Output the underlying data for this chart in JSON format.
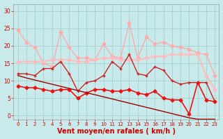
{
  "background_color": "#c8eaea",
  "grid_color": "#aad4d4",
  "xlabel": "Vent moyen/en rafales ( km/h )",
  "xlabel_color": "#cc0000",
  "xlabel_fontsize": 7,
  "yticks": [
    0,
    5,
    10,
    15,
    20,
    25,
    30
  ],
  "xticks": [
    0,
    1,
    2,
    3,
    4,
    5,
    6,
    7,
    8,
    9,
    10,
    11,
    12,
    13,
    14,
    15,
    16,
    17,
    18,
    19,
    20,
    21,
    22,
    23
  ],
  "xlim": [
    -0.5,
    23.5
  ],
  "ylim": [
    -1,
    32
  ],
  "series": [
    {
      "x": [
        0,
        1,
        2,
        3,
        4,
        5,
        6,
        7,
        8,
        9,
        10,
        11,
        12,
        13,
        14,
        15,
        16,
        17,
        18,
        19,
        20,
        21,
        22,
        23
      ],
      "y": [
        24.5,
        21.0,
        19.5,
        15.0,
        14.0,
        24.0,
        19.5,
        16.5,
        16.5,
        16.0,
        20.5,
        17.0,
        16.5,
        26.5,
        16.5,
        22.5,
        20.5,
        21.0,
        20.0,
        19.5,
        19.0,
        18.0,
        17.5,
        11.5
      ],
      "color": "#ffaaaa",
      "linewidth": 1.0,
      "markersize": 2.5,
      "marker": "D"
    },
    {
      "x": [
        0,
        1,
        2,
        3,
        4,
        5,
        6,
        7,
        8,
        9,
        10,
        11,
        12,
        13,
        14,
        15,
        16,
        17,
        18,
        19,
        20,
        21,
        22,
        23
      ],
      "y": [
        15.5,
        15.5,
        15.5,
        15.5,
        16.0,
        16.0,
        16.0,
        15.5,
        15.5,
        16.0,
        16.5,
        16.5,
        16.0,
        16.0,
        16.0,
        16.5,
        17.0,
        17.0,
        17.5,
        17.5,
        17.5,
        17.5,
        11.5,
        7.5
      ],
      "color": "#ffbbbb",
      "linewidth": 1.5,
      "markersize": 2.5,
      "marker": "D"
    },
    {
      "x": [
        0,
        1,
        2,
        3,
        4,
        5,
        6,
        7,
        8,
        9,
        10,
        11,
        12,
        13,
        14,
        15,
        16,
        17,
        18,
        19,
        20,
        21,
        22,
        23
      ],
      "y": [
        12.0,
        12.0,
        11.5,
        13.5,
        13.5,
        15.5,
        12.0,
        7.0,
        9.5,
        10.0,
        11.5,
        15.5,
        13.5,
        17.5,
        12.0,
        11.5,
        14.0,
        13.0,
        10.0,
        9.0,
        9.5,
        9.5,
        9.5,
        4.0
      ],
      "color": "#cc2222",
      "linewidth": 1.0,
      "markersize": 3,
      "marker": "+"
    },
    {
      "x": [
        0,
        1,
        2,
        3,
        4,
        5,
        6,
        7,
        8,
        9,
        10,
        11,
        12,
        13,
        14,
        15,
        16,
        17,
        18,
        19,
        20,
        21,
        22,
        23
      ],
      "y": [
        8.5,
        8.0,
        8.0,
        7.5,
        7.0,
        7.5,
        7.5,
        5.0,
        6.5,
        7.5,
        7.5,
        7.0,
        7.0,
        7.5,
        6.5,
        6.0,
        7.0,
        5.0,
        4.5,
        4.5,
        0.5,
        9.5,
        4.5,
        4.0
      ],
      "color": "#ee1111",
      "linewidth": 1.2,
      "markersize": 2.5,
      "marker": "D"
    },
    {
      "x": [
        0,
        1,
        2,
        3,
        4,
        5,
        6,
        7,
        8,
        9,
        10,
        11,
        12,
        13,
        14,
        15,
        16,
        17,
        18,
        19,
        20,
        21,
        22,
        23
      ],
      "y": [
        11.5,
        10.8,
        10.2,
        9.6,
        9.0,
        8.4,
        7.8,
        7.2,
        6.6,
        6.0,
        5.4,
        4.8,
        4.2,
        3.6,
        3.0,
        2.4,
        1.8,
        1.2,
        0.6,
        0.0,
        -0.6,
        -1.0,
        -1.0,
        -1.0
      ],
      "color": "#990000",
      "linewidth": 1.0,
      "markersize": 0,
      "marker": null
    }
  ]
}
